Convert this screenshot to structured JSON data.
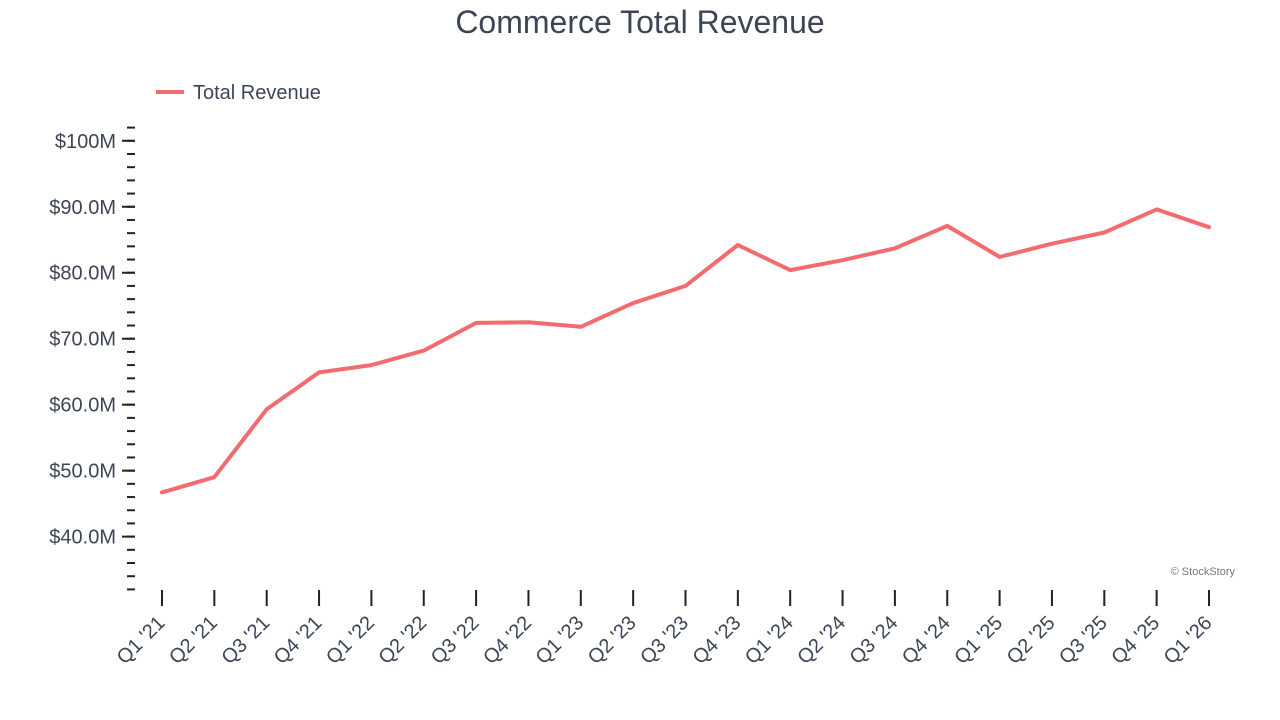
{
  "chart_data": {
    "type": "line",
    "title": "Commerce Total Revenue",
    "xlabel": "",
    "ylabel": "",
    "categories": [
      "Q1 '21",
      "Q2 '21",
      "Q3 '21",
      "Q4 '21",
      "Q1 '22",
      "Q2 '22",
      "Q3 '22",
      "Q4 '22",
      "Q1 '23",
      "Q2 '23",
      "Q3 '23",
      "Q4 '23",
      "Q1 '24",
      "Q2 '24",
      "Q3 '24",
      "Q4 '24",
      "Q1 '25",
      "Q2 '25",
      "Q3 '25",
      "Q4 '25",
      "Q1 '26"
    ],
    "series": [
      {
        "name": "Total Revenue",
        "color": "#f16b6f",
        "values": [
          46.7,
          49.0,
          59.3,
          64.9,
          66.0,
          68.2,
          72.4,
          72.5,
          71.8,
          75.4,
          78.0,
          84.2,
          80.4,
          81.9,
          83.7,
          87.1,
          82.4,
          84.4,
          86.1,
          89.6,
          86.9
        ]
      }
    ],
    "ylim": [
      32,
      102
    ],
    "yticks": [
      40,
      50,
      60,
      70,
      80,
      90,
      100
    ],
    "ytick_labels": [
      "$40.0M",
      "$50.0M",
      "$60.0M",
      "$70.0M",
      "$80.0M",
      "$90.0M",
      "$100M"
    ],
    "grid": false,
    "legend_position": "top-left",
    "watermark": "© StockStory"
  }
}
